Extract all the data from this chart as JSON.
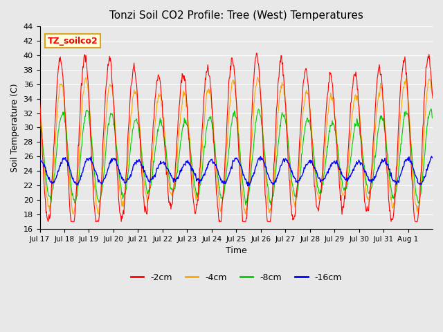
{
  "title": "Tonzi Soil CO2 Profile: Tree (West) Temperatures",
  "xlabel": "Time",
  "ylabel": "Soil Temperature (C)",
  "ylim": [
    16,
    44
  ],
  "yticks": [
    16,
    18,
    20,
    22,
    24,
    26,
    28,
    30,
    32,
    34,
    36,
    38,
    40,
    42,
    44
  ],
  "background_color": "#e8e8e8",
  "colors": {
    "-2cm": "#ff0000",
    "-4cm": "#ffa500",
    "-8cm": "#00cc00",
    "-16cm": "#0000ff"
  },
  "legend_label": "TZ_soilco2",
  "x_tick_labels": [
    "Jul 17",
    "Jul 18",
    "Jul 19",
    "Jul 20",
    "Jul 21",
    "Jul 22",
    "Jul 23",
    "Jul 24",
    "Jul 25",
    "Jul 26",
    "Jul 27",
    "Jul 28",
    "Jul 29",
    "Jul 30",
    "Jul 31",
    "Aug 1"
  ]
}
